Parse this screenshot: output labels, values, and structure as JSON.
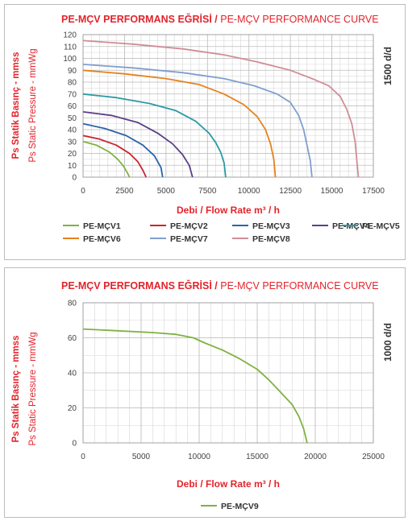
{
  "charts": [
    {
      "title_tr": "PE-MÇV PERFORMANS EĞRİSİ /",
      "title_en": " PE-MÇV PERFORMANCE CURVE",
      "speed": "1500 d/d",
      "ylabel_tr": "Ps Statik Basınç - mmss",
      "ylabel_en": "Ps Static Pressure - mmWg",
      "xlabel": "Debi / Flow Rate m³ / h"
    },
    {
      "title_tr": "PE-MÇV PERFORMANS EĞRİSİ /",
      "title_en": " PE-MÇV PERFORMANCE CURVE",
      "speed": "1000 d/d",
      "ylabel_tr": "Ps Statik Basınç - mmss",
      "ylabel_en": "Ps Static Pressure - mmWg",
      "xlabel": "Debi / Flow Rate m³ / h"
    }
  ],
  "chart_data": [
    {
      "type": "line",
      "xlim": [
        0,
        17500
      ],
      "ylim": [
        0,
        120
      ],
      "xticks": [
        0,
        2500,
        5000,
        7500,
        10000,
        12500,
        15000,
        17500
      ],
      "yticks": [
        0,
        10,
        20,
        30,
        40,
        50,
        60,
        70,
        80,
        90,
        100,
        110,
        120
      ],
      "grid": true,
      "legend_position": "bottom",
      "series": [
        {
          "name": "PE-MÇV1",
          "color": "#7fb241",
          "points": [
            [
              0,
              30
            ],
            [
              800,
              27
            ],
            [
              1600,
              21
            ],
            [
              2100,
              15
            ],
            [
              2450,
              9
            ],
            [
              2700,
              3
            ],
            [
              2800,
              0
            ]
          ]
        },
        {
          "name": "PE-MÇV2",
          "color": "#c8242f",
          "points": [
            [
              0,
              35
            ],
            [
              1000,
              32
            ],
            [
              2000,
              27
            ],
            [
              2800,
              20
            ],
            [
              3300,
              13
            ],
            [
              3600,
              6
            ],
            [
              3800,
              0
            ]
          ]
        },
        {
          "name": "PE-MÇV3",
          "color": "#2a63a8",
          "points": [
            [
              0,
              45
            ],
            [
              1300,
              41
            ],
            [
              2600,
              35
            ],
            [
              3600,
              27
            ],
            [
              4300,
              18
            ],
            [
              4700,
              8
            ],
            [
              4800,
              0
            ]
          ]
        },
        {
          "name": "PE-MÇV4",
          "color": "#5c3f86",
          "points": [
            [
              0,
              55
            ],
            [
              1700,
              52
            ],
            [
              3300,
              46
            ],
            [
              4500,
              37
            ],
            [
              5400,
              28
            ],
            [
              6000,
              19
            ],
            [
              6400,
              10
            ],
            [
              6600,
              0
            ]
          ]
        },
        {
          "name": "PE-MÇV5",
          "color": "#2b9aa5",
          "points": [
            [
              0,
              70
            ],
            [
              2000,
              67
            ],
            [
              4000,
              62
            ],
            [
              5600,
              56
            ],
            [
              6800,
              47
            ],
            [
              7600,
              37
            ],
            [
              8000,
              29
            ],
            [
              8300,
              21
            ],
            [
              8500,
              12
            ],
            [
              8600,
              0
            ]
          ]
        },
        {
          "name": "PE-MÇV6",
          "color": "#e5821e",
          "points": [
            [
              0,
              90
            ],
            [
              2500,
              87
            ],
            [
              5000,
              83
            ],
            [
              7000,
              78
            ],
            [
              8500,
              70
            ],
            [
              9700,
              61
            ],
            [
              10500,
              51
            ],
            [
              11000,
              40
            ],
            [
              11300,
              28
            ],
            [
              11500,
              15
            ],
            [
              11600,
              0
            ]
          ]
        },
        {
          "name": "PE-MÇV7",
          "color": "#7f9fd0",
          "points": [
            [
              0,
              95
            ],
            [
              3000,
              92
            ],
            [
              6000,
              88
            ],
            [
              8500,
              83
            ],
            [
              10300,
              77
            ],
            [
              11700,
              70
            ],
            [
              12500,
              63
            ],
            [
              13000,
              52
            ],
            [
              13300,
              40
            ],
            [
              13500,
              27
            ],
            [
              13700,
              14
            ],
            [
              13800,
              0
            ]
          ]
        },
        {
          "name": "PE-MÇV8",
          "color": "#cf8e96",
          "points": [
            [
              0,
              115
            ],
            [
              3000,
              112
            ],
            [
              6000,
              108
            ],
            [
              8500,
              103
            ],
            [
              10500,
              97
            ],
            [
              12500,
              90
            ],
            [
              13800,
              83
            ],
            [
              14800,
              77
            ],
            [
              15500,
              68
            ],
            [
              15900,
              57
            ],
            [
              16200,
              45
            ],
            [
              16400,
              30
            ],
            [
              16500,
              15
            ],
            [
              16600,
              0
            ]
          ]
        }
      ]
    },
    {
      "type": "line",
      "xlim": [
        0,
        25000
      ],
      "ylim": [
        0,
        80
      ],
      "xticks": [
        0,
        5000,
        10000,
        15000,
        20000,
        25000
      ],
      "yticks": [
        0,
        20,
        40,
        60,
        80
      ],
      "grid": true,
      "legend_position": "bottom",
      "series": [
        {
          "name": "PE-MÇV9",
          "color": "#7fb241",
          "points": [
            [
              0,
              65
            ],
            [
              3000,
              64
            ],
            [
              6000,
              63
            ],
            [
              8000,
              62
            ],
            [
              9500,
              60
            ],
            [
              10500,
              57
            ],
            [
              12000,
              53
            ],
            [
              13500,
              48
            ],
            [
              15000,
              42
            ],
            [
              16000,
              36
            ],
            [
              17000,
              29
            ],
            [
              18000,
              22
            ],
            [
              18600,
              15
            ],
            [
              19000,
              8
            ],
            [
              19300,
              0
            ]
          ]
        }
      ]
    }
  ]
}
